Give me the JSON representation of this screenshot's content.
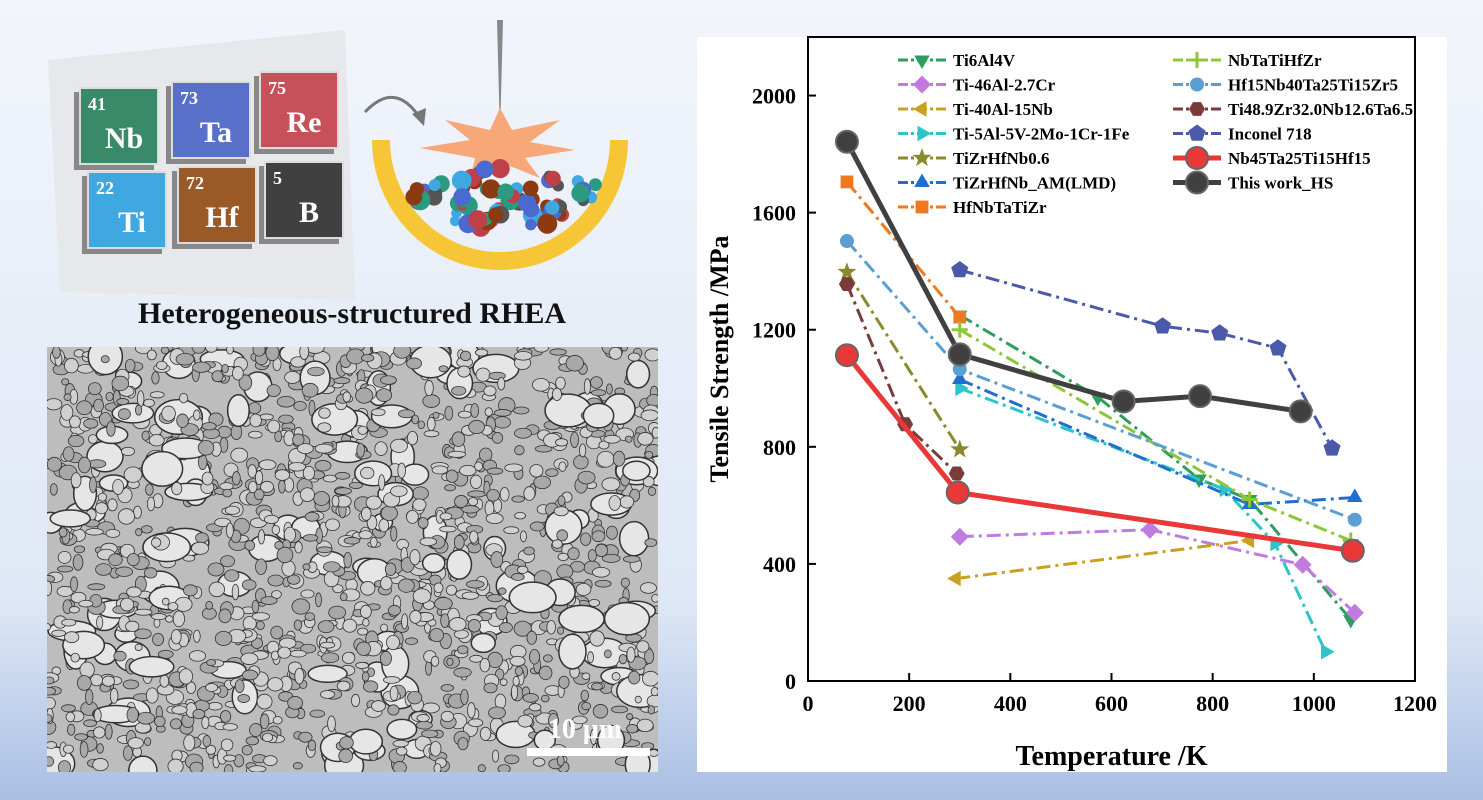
{
  "elements": [
    {
      "number": 41,
      "symbol": "Nb"
    },
    {
      "number": 73,
      "symbol": "Ta"
    },
    {
      "number": 75,
      "symbol": "Re"
    },
    {
      "number": 22,
      "symbol": "Ti"
    },
    {
      "number": 72,
      "symbol": "Hf"
    },
    {
      "number": 5,
      "symbol": "B"
    }
  ],
  "caption": "Heterogeneous-structured RHEA",
  "scale_bar": "10 μm",
  "chart_data": {
    "type": "line",
    "xlabel": "Temperature /K",
    "ylabel": "Tensile Strength /MPa",
    "xlim": [
      0,
      1200
    ],
    "ylim": [
      0,
      2200
    ],
    "xticks": [
      0,
      200,
      400,
      600,
      800,
      1000,
      1200
    ],
    "yticks": [
      0,
      400,
      800,
      1200,
      1600,
      2000
    ],
    "series": [
      {
        "name": "Ti6Al4V",
        "color": "#2e9e5e",
        "marker": "triangle-down",
        "linestyle": "dashdot",
        "x": [
          300,
          573,
          773,
          873,
          1073
        ],
        "values": [
          1250,
          970,
          690,
          620,
          210
        ]
      },
      {
        "name": "Ti-46Al-2.7Cr",
        "color": "#c07ae0",
        "marker": "diamond",
        "linestyle": "dashdot",
        "x": [
          300,
          676,
          978,
          1081
        ],
        "values": [
          493,
          517,
          397,
          233
        ]
      },
      {
        "name": "Ti-40Al-15Nb",
        "color": "#c9a020",
        "marker": "triangle-left",
        "linestyle": "dashdot",
        "x": [
          293,
          873
        ],
        "values": [
          350,
          480
        ]
      },
      {
        "name": "Ti-5Al-5V-2Mo-1Cr-1Fe",
        "color": "#2cc4c8",
        "marker": "triangle-right",
        "linestyle": "dashdot",
        "x": [
          300,
          823,
          923,
          1023
        ],
        "values": [
          1000,
          655,
          470,
          100
        ]
      },
      {
        "name": "TiZrHfNb0.6",
        "color": "#8a8a2a",
        "marker": "star",
        "linestyle": "dashdot",
        "x": [
          77,
          300
        ],
        "values": [
          1397,
          791
        ]
      },
      {
        "name": "TiZrHfNb_AM(LMD)",
        "color": "#1f6fd0",
        "marker": "triangle-up",
        "linestyle": "dashdot",
        "x": [
          300,
          873,
          1081
        ],
        "values": [
          1030,
          603,
          627
        ]
      },
      {
        "name": "HfNbTaTiZr",
        "color": "#f07820",
        "marker": "square",
        "linestyle": "dashdot",
        "x": [
          77,
          300
        ],
        "values": [
          1705,
          1243
        ]
      },
      {
        "name": "NbTaTiHfZr",
        "color": "#8cc63a",
        "marker": "plus",
        "linestyle": "dashdot",
        "x": [
          300,
          873,
          1073
        ],
        "values": [
          1200,
          620,
          480
        ]
      },
      {
        "name": "Hf15Nb40Ta25Ti15Zr5",
        "color": "#5a9fd4",
        "marker": "circle",
        "linestyle": "dashdot",
        "x": [
          77,
          300,
          1081
        ],
        "values": [
          1503,
          1065,
          551
        ]
      },
      {
        "name": "Ti48.9Zr32.0Nb12.6Ta6.5",
        "color": "#7a3b3b",
        "marker": "hexagon",
        "linestyle": "dashdot",
        "x": [
          77,
          192,
          294
        ],
        "values": [
          1356,
          877,
          709
        ]
      },
      {
        "name": "Inconel 718",
        "color": "#4a5aa8",
        "marker": "pentagon",
        "linestyle": "dashdot",
        "x": [
          300,
          701,
          814,
          929,
          1036
        ],
        "values": [
          1404,
          1212,
          1188,
          1137,
          795
        ]
      },
      {
        "name": "Nb45Ta25Ti15Hf15",
        "color": "#e83838",
        "marker": "big-circle",
        "linestyle": "solid",
        "x": [
          77,
          296,
          1077
        ],
        "values": [
          1113,
          644,
          445
        ]
      },
      {
        "name": "This work_HS",
        "color": "#404040",
        "marker": "big-circle",
        "linestyle": "solid",
        "x": [
          77,
          300,
          624,
          775,
          974
        ],
        "values": [
          1842,
          1116,
          955,
          973,
          921
        ]
      }
    ]
  }
}
